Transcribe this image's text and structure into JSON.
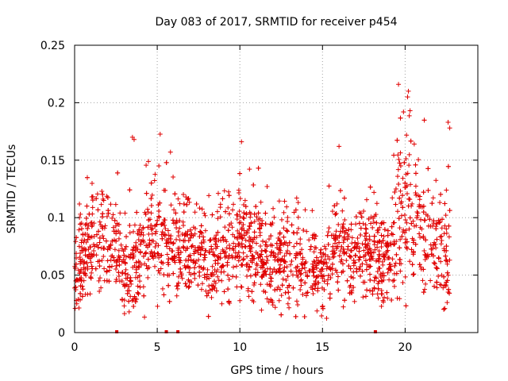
{
  "chart_data": {
    "type": "scatter",
    "title": "Day 083 of 2017, SRMTID for receiver p454",
    "xlabel": "GPS time / hours",
    "ylabel": "SRMTID / TECUs",
    "xlim": [
      0,
      24.4
    ],
    "ylim": [
      0,
      0.25
    ],
    "x_ticks": [
      0,
      5,
      10,
      15,
      20
    ],
    "y_ticks": [
      0,
      0.05,
      0.1,
      0.15,
      0.2,
      0.25
    ],
    "x_tick_labels": [
      "0",
      "5",
      "10",
      "15",
      "20"
    ],
    "y_tick_labels": [
      "0",
      "0.05",
      "0.1",
      "0.15",
      "0.2",
      "0.25"
    ],
    "grid": true,
    "marker": "+",
    "color": "#e00000",
    "n_points": 2600,
    "zero_markers_x": [
      2.55,
      5.55,
      6.25,
      18.2
    ],
    "series": [
      {
        "name": "SRMTID",
        "profile": [
          {
            "x": 0.0,
            "mean": 0.045,
            "spread": 0.012
          },
          {
            "x": 0.5,
            "mean": 0.065,
            "spread": 0.02
          },
          {
            "x": 1.5,
            "mean": 0.085,
            "spread": 0.025
          },
          {
            "x": 2.5,
            "mean": 0.075,
            "spread": 0.022
          },
          {
            "x": 3.0,
            "mean": 0.05,
            "spread": 0.018
          },
          {
            "x": 4.0,
            "mean": 0.07,
            "spread": 0.022
          },
          {
            "x": 5.0,
            "mean": 0.085,
            "spread": 0.025
          },
          {
            "x": 6.0,
            "mean": 0.08,
            "spread": 0.025
          },
          {
            "x": 7.0,
            "mean": 0.07,
            "spread": 0.02
          },
          {
            "x": 8.0,
            "mean": 0.065,
            "spread": 0.018
          },
          {
            "x": 9.0,
            "mean": 0.07,
            "spread": 0.02
          },
          {
            "x": 10.0,
            "mean": 0.08,
            "spread": 0.025
          },
          {
            "x": 11.0,
            "mean": 0.07,
            "spread": 0.022
          },
          {
            "x": 12.0,
            "mean": 0.06,
            "spread": 0.018
          },
          {
            "x": 13.0,
            "mean": 0.065,
            "spread": 0.02
          },
          {
            "x": 14.0,
            "mean": 0.06,
            "spread": 0.018
          },
          {
            "x": 15.0,
            "mean": 0.055,
            "spread": 0.018
          },
          {
            "x": 16.0,
            "mean": 0.075,
            "spread": 0.022
          },
          {
            "x": 17.0,
            "mean": 0.07,
            "spread": 0.02
          },
          {
            "x": 18.0,
            "mean": 0.07,
            "spread": 0.02
          },
          {
            "x": 19.0,
            "mean": 0.055,
            "spread": 0.02
          },
          {
            "x": 19.5,
            "mean": 0.1,
            "spread": 0.035
          },
          {
            "x": 20.0,
            "mean": 0.12,
            "spread": 0.04
          },
          {
            "x": 21.0,
            "mean": 0.09,
            "spread": 0.03
          },
          {
            "x": 22.0,
            "mean": 0.075,
            "spread": 0.025
          },
          {
            "x": 22.7,
            "mean": 0.065,
            "spread": 0.03
          }
        ],
        "outliers": [
          {
            "x": 3.5,
            "y": 0.17
          },
          {
            "x": 3.6,
            "y": 0.168
          },
          {
            "x": 5.8,
            "y": 0.157
          },
          {
            "x": 10.1,
            "y": 0.166
          },
          {
            "x": 16.0,
            "y": 0.162
          },
          {
            "x": 19.6,
            "y": 0.216
          },
          {
            "x": 20.2,
            "y": 0.21
          },
          {
            "x": 20.15,
            "y": 0.205
          },
          {
            "x": 19.9,
            "y": 0.192
          },
          {
            "x": 20.3,
            "y": 0.193
          },
          {
            "x": 22.6,
            "y": 0.183
          },
          {
            "x": 22.7,
            "y": 0.178
          },
          {
            "x": 0.1,
            "y": 0.028
          },
          {
            "x": 3.3,
            "y": 0.018
          },
          {
            "x": 22.4,
            "y": 0.021
          }
        ]
      }
    ]
  }
}
